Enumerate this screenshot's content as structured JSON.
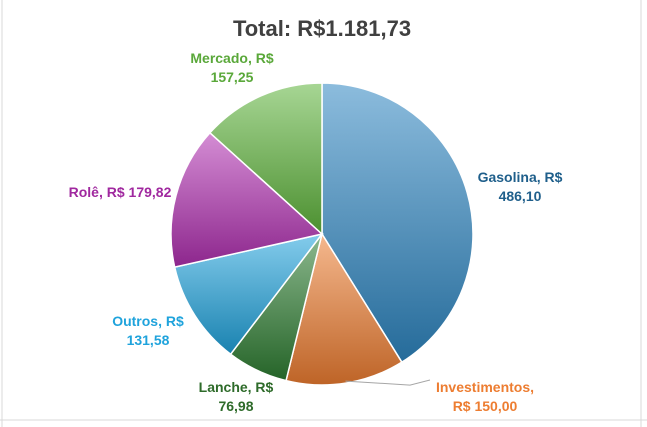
{
  "chart_data": {
    "type": "pie",
    "title": "Total: R$1.181,73",
    "slices": [
      {
        "category": "Gasolina",
        "value": 486.1,
        "label_lines": [
          "Gasolina, R$",
          "486,10"
        ],
        "color": "#2e86c1",
        "label_color": "#1f5f8b"
      },
      {
        "category": "Investimentos",
        "value": 150.0,
        "label_lines": [
          "Investimentos,",
          "R$ 150,00"
        ],
        "color": "#ed7d31",
        "label_color": "#ed7d31"
      },
      {
        "category": "Lanche",
        "value": 76.98,
        "label_lines": [
          "Lanche, R$",
          "76,98"
        ],
        "color": "#2e7d32",
        "label_color": "#2e6b2a"
      },
      {
        "category": "Outros",
        "value": 131.58,
        "label_lines": [
          "Outros, R$",
          "131,58"
        ],
        "color": "#1fa3dc",
        "label_color": "#1fa3dc"
      },
      {
        "category": "Rolê",
        "value": 179.82,
        "label_lines": [
          "Rolê, R$ 179,82"
        ],
        "color": "#b030b0",
        "label_color": "#a0289f"
      },
      {
        "category": "Mercado",
        "value": 157.25,
        "label_lines": [
          "Mercado, R$",
          "157,25"
        ],
        "color": "#5fb43c",
        "label_color": "#5aa83a"
      }
    ]
  }
}
